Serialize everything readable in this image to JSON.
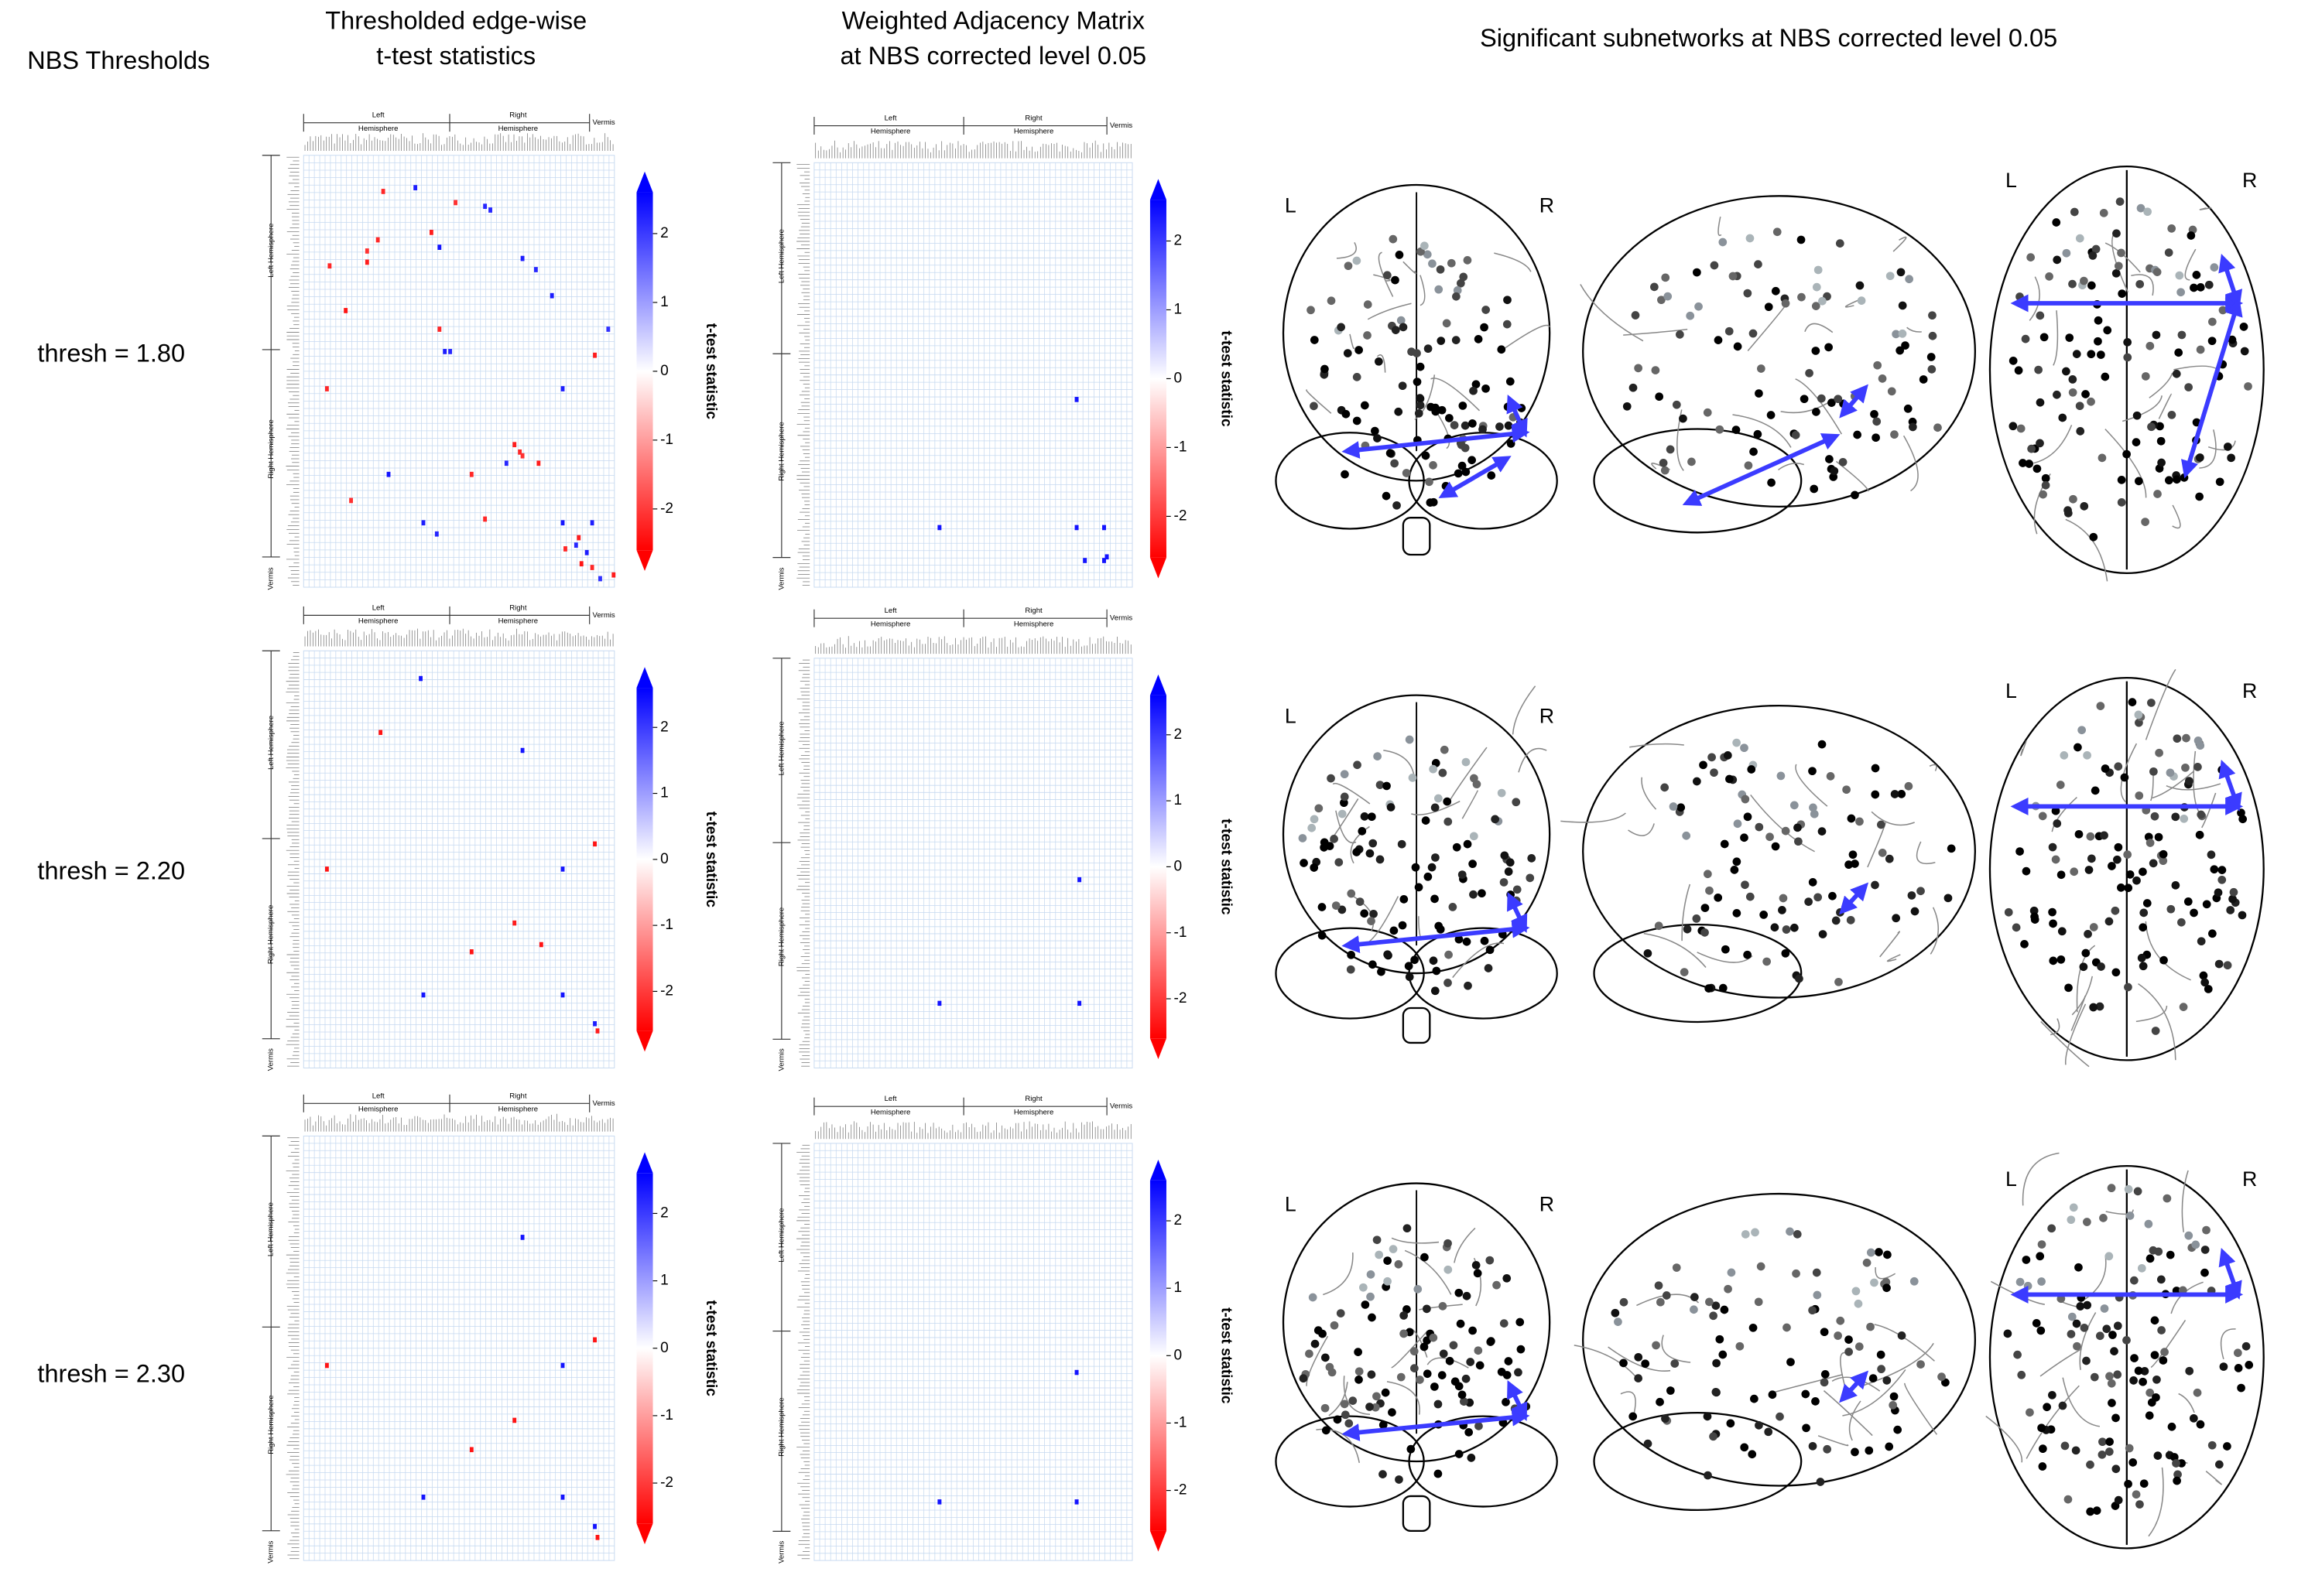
{
  "header": {
    "thresholds_title": "NBS Thresholds",
    "edgewise_title": [
      "Thresholded edge-wise",
      "t-test statistics"
    ],
    "weighted_title": [
      "Weighted Adjacency Matrix",
      "at NBS corrected level 0.05"
    ],
    "subnetworks_title": "Significant subnetworks at NBS corrected level 0.05"
  },
  "matrix": {
    "size": 116,
    "top_labels": [
      [
        "Left",
        "Hemisphere"
      ],
      [
        "Right",
        "Hemisphere"
      ],
      [
        "Vermis"
      ]
    ],
    "side_labels": [
      "Left Hemisphere",
      "Right Hemisphere",
      "Vermis"
    ],
    "colorbar": {
      "label": "t-test statistic",
      "lim": [
        -2.6,
        2.6
      ],
      "ticks": [
        -2,
        -1,
        0,
        1,
        2
      ],
      "colors": [
        "#ff0000",
        "#ffffff",
        "#0000ff"
      ]
    }
  },
  "rows": [
    {
      "threshold_label": "thresh = 1.80",
      "brain_labels": [
        "L",
        "R"
      ],
      "edgewise": [
        [
          8,
          41,
          2.3
        ],
        [
          13,
          67,
          2.2
        ],
        [
          14,
          69,
          2.2
        ],
        [
          24,
          50,
          2.4
        ],
        [
          27,
          81,
          2.3
        ],
        [
          30,
          86,
          2.2
        ],
        [
          37,
          92,
          2.3
        ],
        [
          46,
          113,
          2.1
        ],
        [
          52,
          52,
          2.3
        ],
        [
          52,
          54,
          2.2
        ],
        [
          62,
          96,
          2.3
        ],
        [
          82,
          75,
          2.2
        ],
        [
          85,
          31,
          2.4
        ],
        [
          98,
          44,
          2.3
        ],
        [
          101,
          49,
          2.2
        ],
        [
          98,
          96,
          2.4
        ],
        [
          98,
          107,
          2.3
        ],
        [
          104,
          101,
          2.2
        ],
        [
          106,
          105,
          2.3
        ],
        [
          113,
          110,
          2.1
        ],
        [
          9,
          29,
          -2.2
        ],
        [
          12,
          56,
          -2.1
        ],
        [
          20,
          47,
          -2.3
        ],
        [
          22,
          27,
          -2.2
        ],
        [
          25,
          23,
          -2.1
        ],
        [
          28,
          23,
          -2.3
        ],
        [
          29,
          9,
          -2.2
        ],
        [
          41,
          15,
          -2.4
        ],
        [
          46,
          50,
          -2.2
        ],
        [
          53,
          108,
          -2.3
        ],
        [
          62,
          8,
          -2.2
        ],
        [
          77,
          78,
          -2.3
        ],
        [
          79,
          80,
          -2.2
        ],
        [
          80,
          81,
          -2.1
        ],
        [
          82,
          87,
          -2.3
        ],
        [
          85,
          62,
          -2.2
        ],
        [
          92,
          17,
          -2.1
        ],
        [
          97,
          67,
          -2.2
        ],
        [
          102,
          102,
          -2.3
        ],
        [
          105,
          97,
          -2.2
        ],
        [
          109,
          103,
          -2.4
        ],
        [
          110,
          107,
          -2.2
        ],
        [
          112,
          115,
          -2.3
        ]
      ],
      "weighted": [
        [
          64,
          95,
          2.4
        ],
        [
          99,
          45,
          2.4
        ],
        [
          99,
          95,
          2.4
        ],
        [
          99,
          105,
          2.4
        ],
        [
          108,
          98,
          2.4
        ],
        [
          108,
          105,
          2.4
        ],
        [
          107,
          106,
          2.4
        ]
      ]
    },
    {
      "threshold_label": "thresh = 2.20",
      "brain_labels": [
        "L",
        "R"
      ],
      "edgewise": [
        [
          7,
          43,
          2.4
        ],
        [
          27,
          81,
          2.4
        ],
        [
          60,
          96,
          2.4
        ],
        [
          95,
          44,
          2.4
        ],
        [
          95,
          96,
          2.4
        ],
        [
          103,
          108,
          2.3
        ],
        [
          22,
          28,
          -2.4
        ],
        [
          53,
          108,
          -2.4
        ],
        [
          60,
          8,
          -2.4
        ],
        [
          75,
          78,
          -2.3
        ],
        [
          81,
          88,
          -2.4
        ],
        [
          83,
          62,
          -2.4
        ],
        [
          105,
          109,
          -2.3
        ]
      ],
      "weighted": [
        [
          62,
          96,
          2.4
        ],
        [
          97,
          45,
          2.4
        ],
        [
          97,
          96,
          2.4
        ]
      ]
    },
    {
      "threshold_label": "thresh = 2.30",
      "brain_labels": [
        "L",
        "R"
      ],
      "edgewise": [
        [
          27,
          81,
          2.4
        ],
        [
          62,
          96,
          2.4
        ],
        [
          98,
          44,
          2.4
        ],
        [
          98,
          96,
          2.4
        ],
        [
          106,
          108,
          2.4
        ],
        [
          55,
          108,
          -2.4
        ],
        [
          62,
          8,
          -2.4
        ],
        [
          77,
          78,
          -2.4
        ],
        [
          85,
          62,
          -2.4
        ],
        [
          109,
          109,
          -2.4
        ]
      ],
      "weighted": [
        [
          63,
          95,
          2.4
        ],
        [
          99,
          45,
          2.4
        ],
        [
          99,
          95,
          2.4
        ]
      ]
    }
  ]
}
